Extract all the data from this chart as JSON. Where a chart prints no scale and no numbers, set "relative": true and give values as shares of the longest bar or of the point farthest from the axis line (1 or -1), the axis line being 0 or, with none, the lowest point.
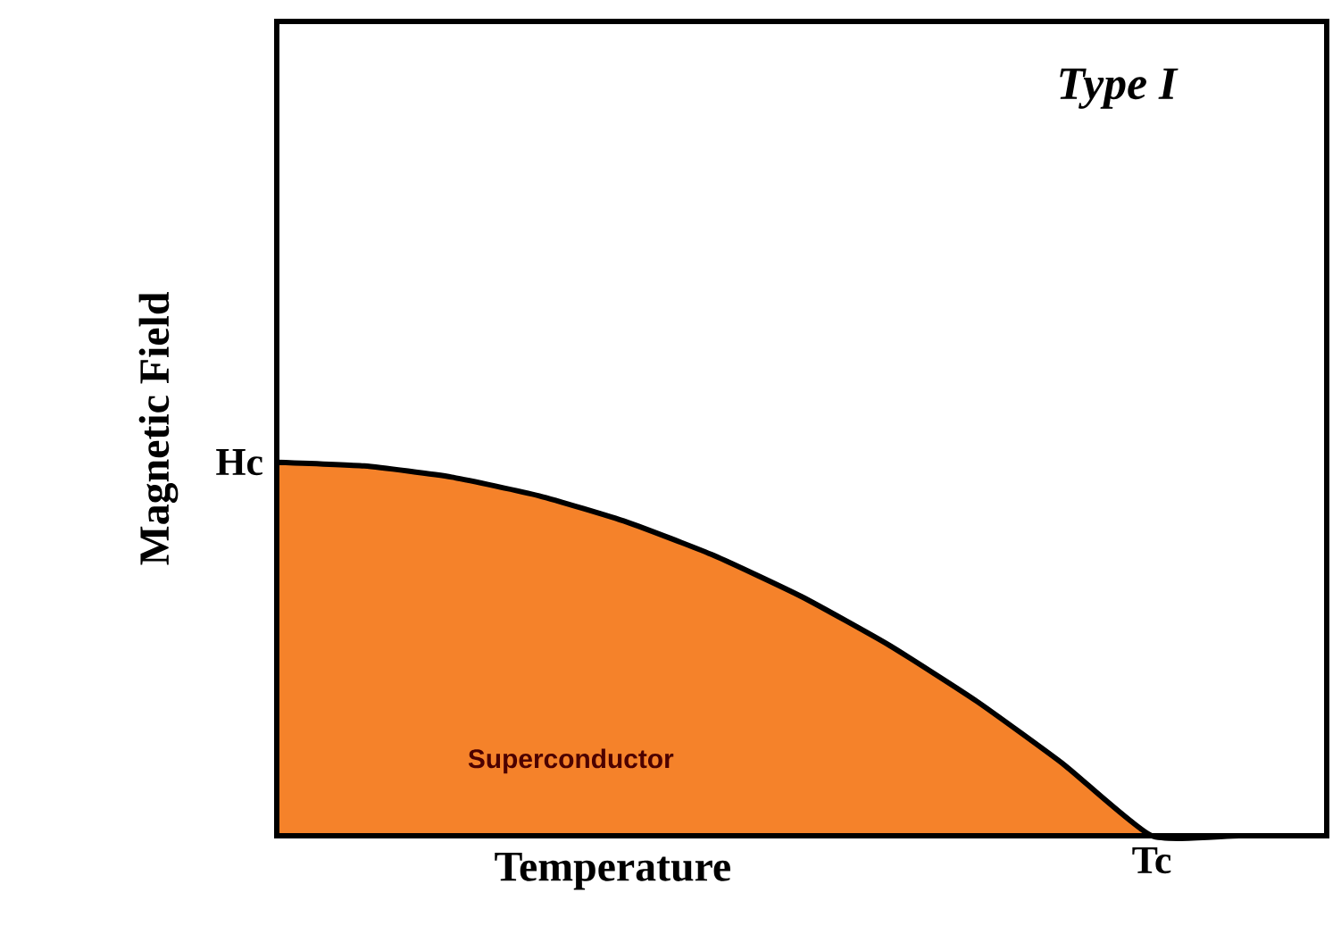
{
  "chart_data": {
    "type": "area",
    "relative": true,
    "xlabel": "Temperature",
    "ylabel": "Magnetic Field",
    "annotations": [
      "Type I",
      "Superconductor",
      "Hc",
      "Tc"
    ],
    "categories": [
      null,
      null,
      null,
      null,
      null,
      null,
      null,
      null,
      null,
      null,
      null,
      null,
      null
    ],
    "series": [
      {
        "color": "#f5822a",
        "values": [
          1.0,
          0.99,
          0.96,
          0.91,
          0.84,
          0.75,
          0.64,
          0.51,
          0.36,
          0.19,
          0,
          0,
          0
        ]
      }
    ]
  }
}
